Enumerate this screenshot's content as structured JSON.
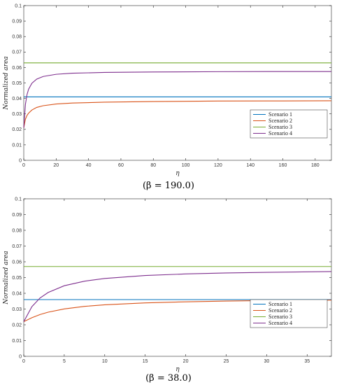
{
  "chart_data": [
    {
      "type": "line",
      "caption": "(β = 190.0)",
      "xlabel": "η",
      "ylabel": "Normalized area",
      "xlim": [
        0,
        190
      ],
      "ylim": [
        0,
        0.1
      ],
      "xticks": [
        0,
        20,
        40,
        60,
        80,
        100,
        120,
        140,
        160,
        180
      ],
      "yticks": [
        0,
        0.01,
        0.02,
        0.03,
        0.04,
        0.05,
        0.06,
        0.07,
        0.08,
        0.09,
        0.1
      ],
      "grid": false,
      "legend_position": "lower-right",
      "series": [
        {
          "name": "Scenario 1",
          "color": "#0072BD",
          "x": [
            0,
            190
          ],
          "y": [
            0.041,
            0.041
          ]
        },
        {
          "name": "Scenario 2",
          "color": "#D95319",
          "x": [
            0,
            1,
            2,
            3,
            5,
            8,
            12,
            20,
            30,
            50,
            80,
            120,
            160,
            190
          ],
          "y": [
            0.021,
            0.0265,
            0.029,
            0.0305,
            0.0325,
            0.0342,
            0.0353,
            0.0364,
            0.037,
            0.0376,
            0.038,
            0.0383,
            0.0384,
            0.0385
          ]
        },
        {
          "name": "Scenario 3",
          "color": "#77AC30",
          "x": [
            0,
            190
          ],
          "y": [
            0.063,
            0.063
          ]
        },
        {
          "name": "Scenario 4",
          "color": "#7E2F8E",
          "x": [
            0,
            1,
            2,
            3,
            5,
            8,
            12,
            20,
            30,
            50,
            80,
            120,
            160,
            190
          ],
          "y": [
            0.021,
            0.036,
            0.0425,
            0.046,
            0.0498,
            0.0525,
            0.0542,
            0.0556,
            0.0563,
            0.0568,
            0.0571,
            0.0573,
            0.0574,
            0.0574
          ]
        }
      ]
    },
    {
      "type": "line",
      "caption": "(β = 38.0)",
      "xlabel": "η",
      "ylabel": "Normalized area",
      "xlim": [
        0,
        38
      ],
      "ylim": [
        0,
        0.1
      ],
      "xticks": [
        0,
        5,
        10,
        15,
        20,
        25,
        30,
        35
      ],
      "yticks": [
        0,
        0.01,
        0.02,
        0.03,
        0.04,
        0.05,
        0.06,
        0.07,
        0.08,
        0.09,
        0.1
      ],
      "grid": false,
      "legend_position": "lower-right",
      "series": [
        {
          "name": "Scenario 1",
          "color": "#0072BD",
          "x": [
            0,
            38
          ],
          "y": [
            0.036,
            0.036
          ]
        },
        {
          "name": "Scenario 2",
          "color": "#D95319",
          "x": [
            0,
            1,
            2,
            3,
            5,
            7.5,
            10,
            15,
            20,
            25,
            30,
            38
          ],
          "y": [
            0.022,
            0.0245,
            0.0265,
            0.028,
            0.0301,
            0.0317,
            0.0327,
            0.0339,
            0.0346,
            0.0351,
            0.0354,
            0.0357
          ]
        },
        {
          "name": "Scenario 3",
          "color": "#77AC30",
          "x": [
            0,
            38
          ],
          "y": [
            0.057,
            0.057
          ]
        },
        {
          "name": "Scenario 4",
          "color": "#7E2F8E",
          "x": [
            0,
            1,
            2,
            3,
            5,
            7.5,
            10,
            15,
            20,
            25,
            30,
            38
          ],
          "y": [
            0.022,
            0.0315,
            0.037,
            0.0405,
            0.0448,
            0.0477,
            0.0494,
            0.0513,
            0.0523,
            0.0529,
            0.0533,
            0.0538
          ]
        }
      ]
    }
  ]
}
